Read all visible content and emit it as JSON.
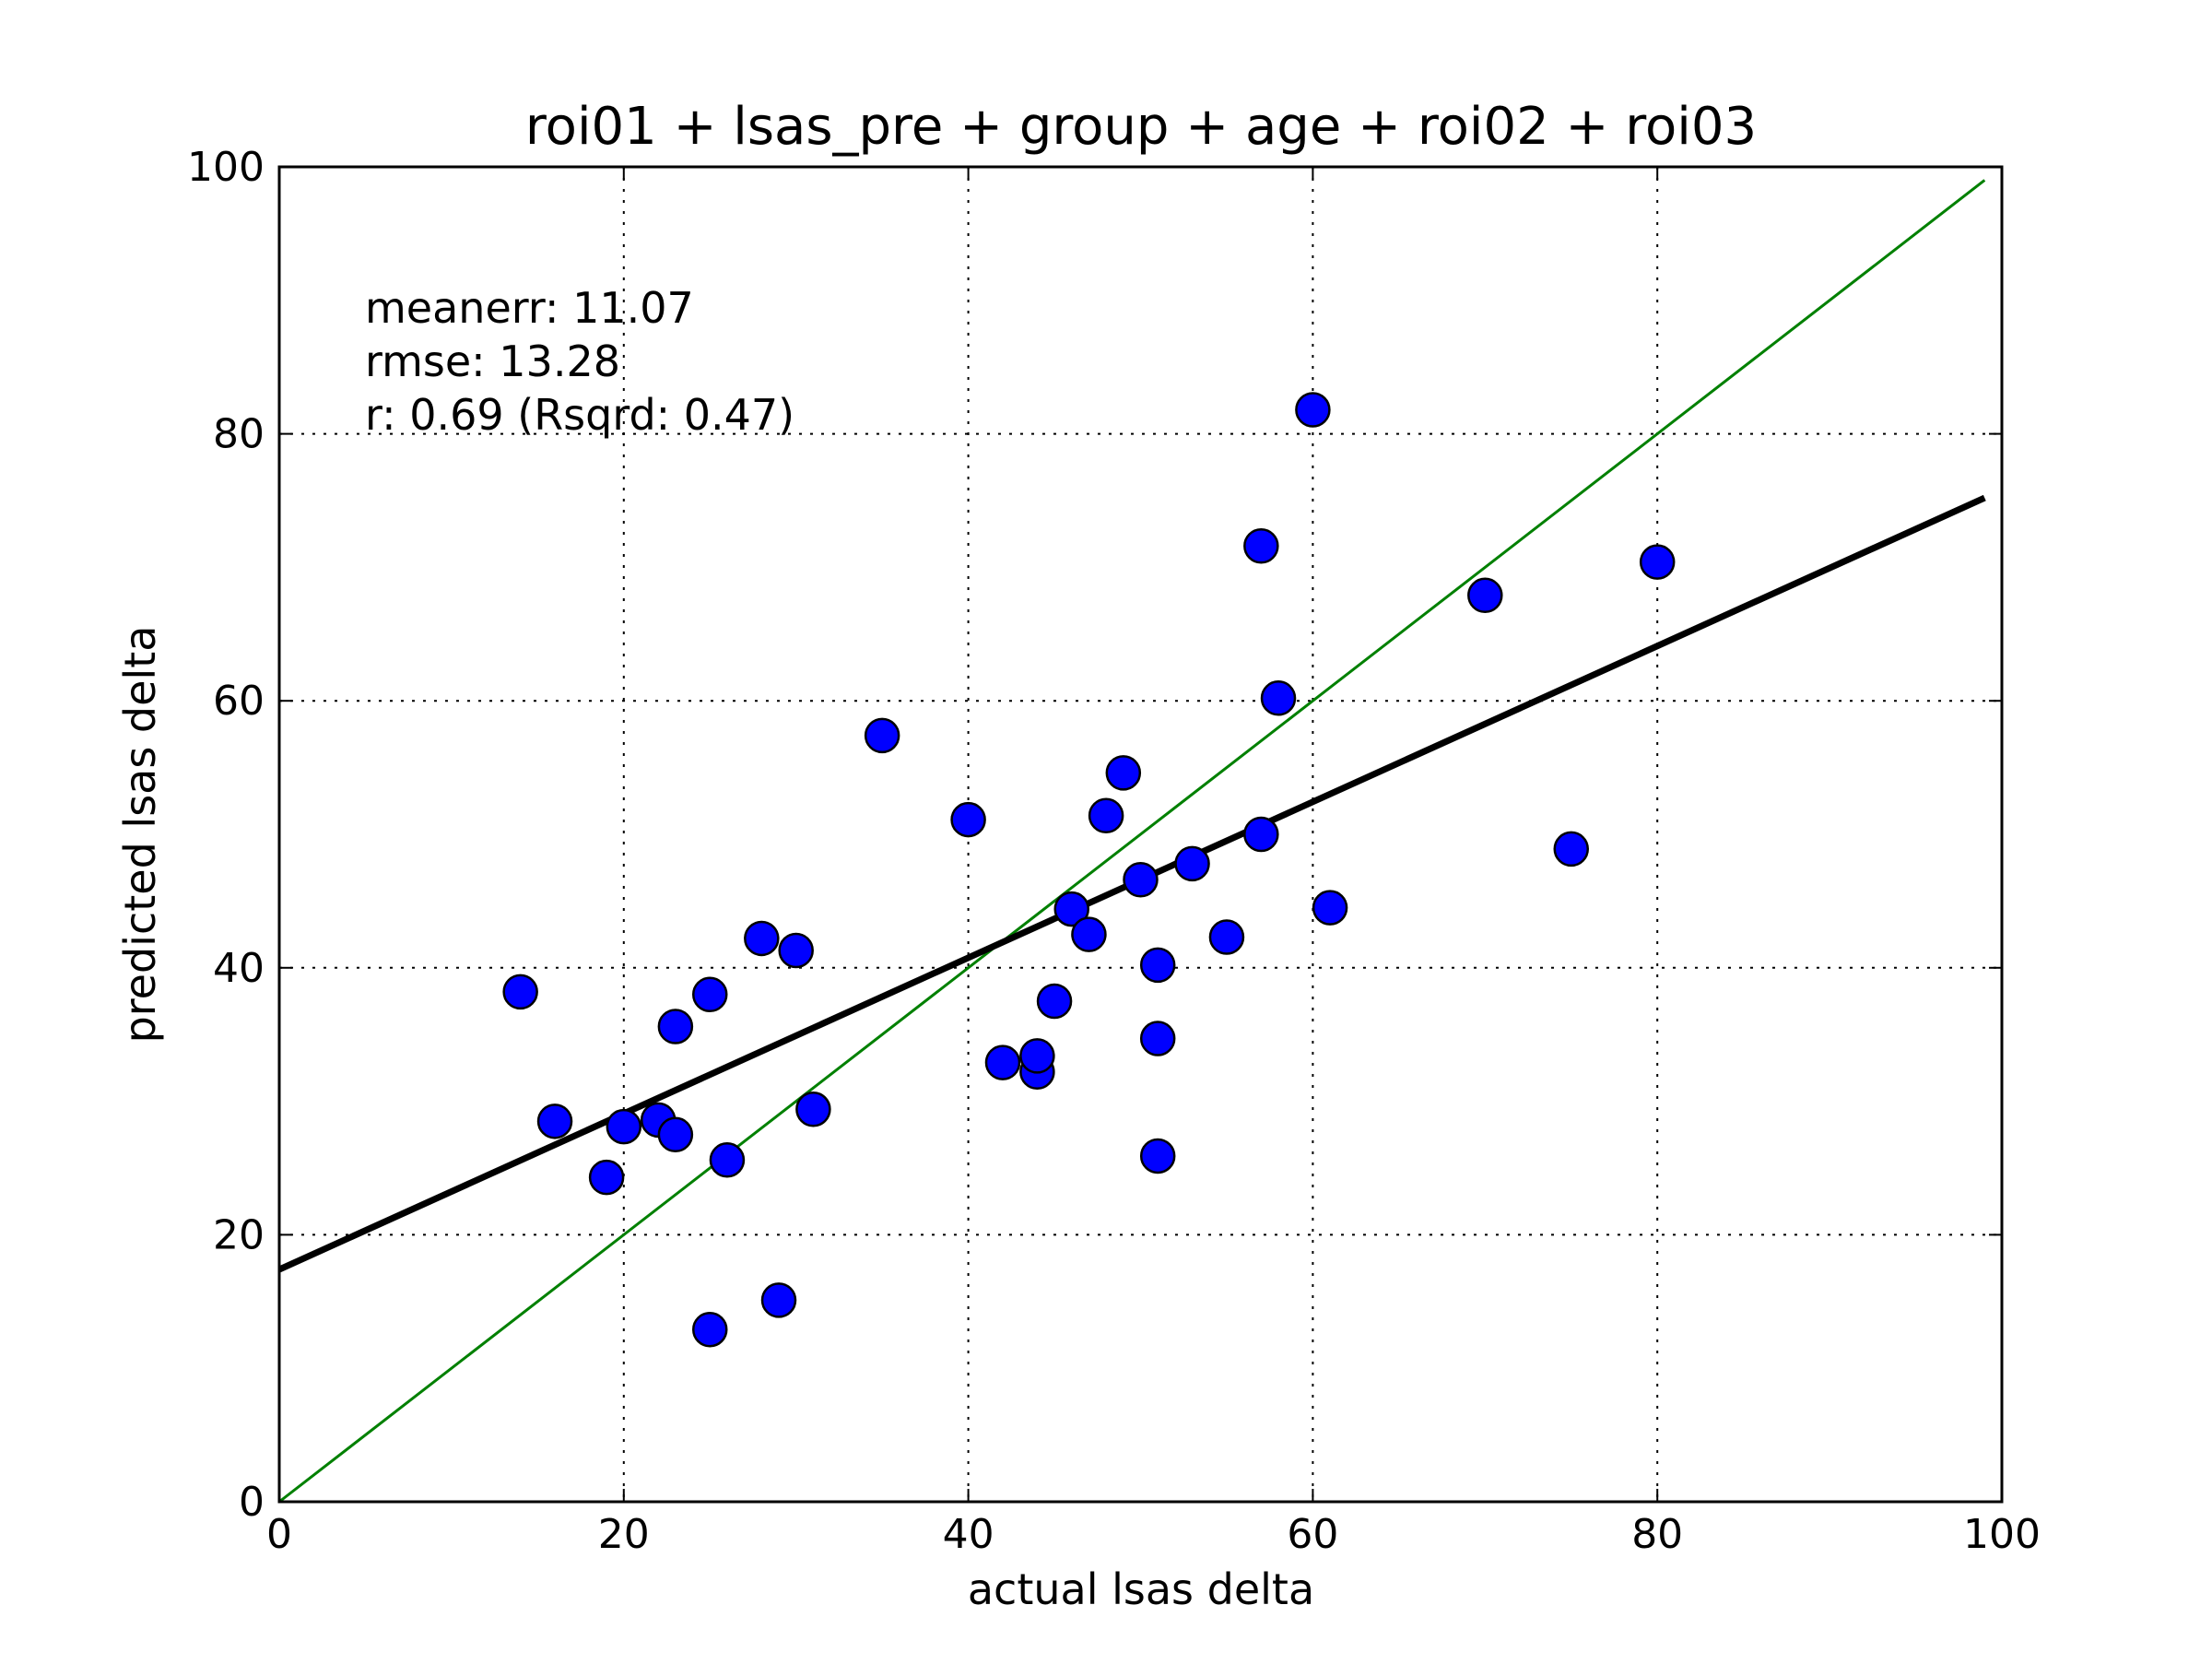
{
  "chart_data": {
    "type": "scatter",
    "title": "roi01 + lsas_pre + group + age + roi02 + roi03",
    "xlabel": "actual lsas delta",
    "ylabel": "predicted lsas delta",
    "xlim": [
      0,
      100
    ],
    "ylim": [
      0,
      100
    ],
    "xticks": [
      "0",
      "20",
      "40",
      "60",
      "80",
      "100"
    ],
    "yticks": [
      "0",
      "20",
      "40",
      "60",
      "80",
      "100"
    ],
    "grid": true,
    "stats": [
      "meanerr: 11.07",
      "rmse: 13.28",
      "r: 0.69 (Rsqrd: 0.47)"
    ],
    "point_color": "#0000ff",
    "point_edge_color": "#000000",
    "points": [
      {
        "x": 14,
        "y": 38.2
      },
      {
        "x": 16,
        "y": 28.5
      },
      {
        "x": 19,
        "y": 24.3
      },
      {
        "x": 20,
        "y": 28.1
      },
      {
        "x": 22,
        "y": 28.6
      },
      {
        "x": 23,
        "y": 27.5
      },
      {
        "x": 23,
        "y": 35.6
      },
      {
        "x": 25,
        "y": 38.0
      },
      {
        "x": 25,
        "y": 12.9
      },
      {
        "x": 26,
        "y": 25.6
      },
      {
        "x": 28,
        "y": 42.2
      },
      {
        "x": 29,
        "y": 15.1
      },
      {
        "x": 30,
        "y": 41.3
      },
      {
        "x": 31,
        "y": 29.4
      },
      {
        "x": 35,
        "y": 57.4
      },
      {
        "x": 40,
        "y": 51.1
      },
      {
        "x": 42,
        "y": 32.9
      },
      {
        "x": 44,
        "y": 32.2
      },
      {
        "x": 44,
        "y": 33.4
      },
      {
        "x": 45,
        "y": 37.5
      },
      {
        "x": 46,
        "y": 44.4
      },
      {
        "x": 47,
        "y": 42.5
      },
      {
        "x": 48,
        "y": 51.4
      },
      {
        "x": 49,
        "y": 54.6
      },
      {
        "x": 50,
        "y": 46.6
      },
      {
        "x": 51,
        "y": 40.2
      },
      {
        "x": 51,
        "y": 34.7
      },
      {
        "x": 51,
        "y": 25.9
      },
      {
        "x": 53,
        "y": 47.8
      },
      {
        "x": 55,
        "y": 42.3
      },
      {
        "x": 57,
        "y": 71.6
      },
      {
        "x": 57,
        "y": 50.0
      },
      {
        "x": 58,
        "y": 60.2
      },
      {
        "x": 60,
        "y": 81.8
      },
      {
        "x": 61,
        "y": 44.5
      },
      {
        "x": 70,
        "y": 67.9
      },
      {
        "x": 75,
        "y": 48.9
      },
      {
        "x": 80,
        "y": 70.4
      }
    ],
    "fit_line": {
      "x": [
        0,
        99
      ],
      "y": [
        17.4,
        75.2
      ],
      "color": "#000000"
    },
    "identity_line": {
      "x": [
        0,
        99
      ],
      "y": [
        0,
        99
      ],
      "color": "#008000"
    }
  }
}
